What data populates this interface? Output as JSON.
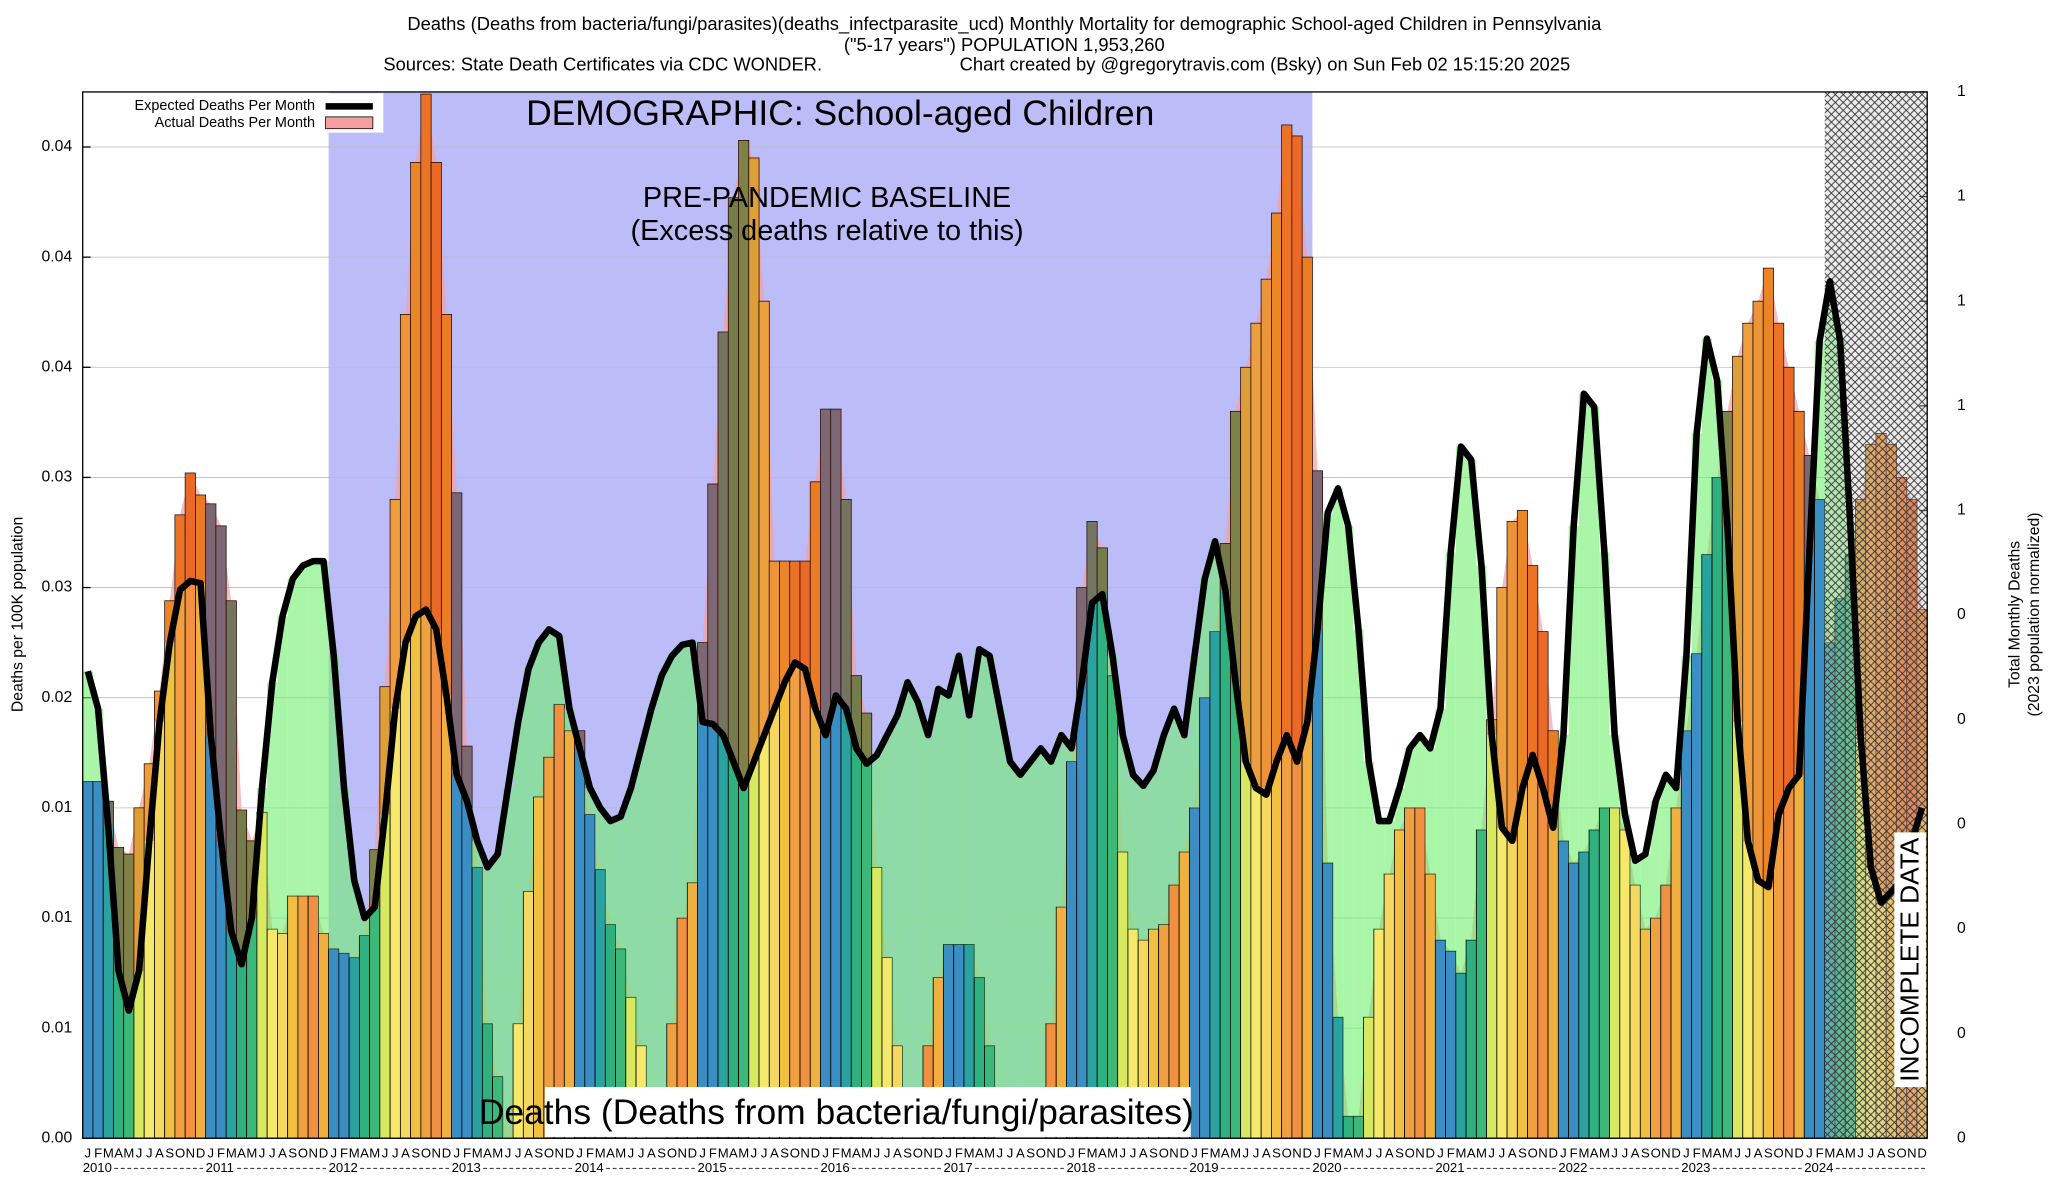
{
  "chart_data": {
    "type": "bar",
    "title": "Deaths (Deaths from bacteria/fungi/parasites)(deaths_infectparasite_ucd) Monthly Mortality for demographic School-aged Children in Pennsylvania",
    "subtitle": "(\"5-17 years\") POPULATION 1,953,260",
    "source": "Sources: State Death Certificates via CDC WONDER.",
    "credit": "Chart created by @gregorytravis.com (Bsky) on Sun Feb 02 15:15:20 2025",
    "ylabel": "Deaths per 100K population",
    "y2label": [
      "Total Monthly Deaths",
      "(2023 population normalized)"
    ],
    "annotations": [
      "DEMOGRAPHIC: School-aged Children",
      "PRE-PANDEMIC BASELINE",
      "(Excess deaths relative to this)",
      "Deaths (Deaths from bacteria/fungi/parasites)",
      "INCOMPLETE DATA"
    ],
    "months": [
      "J",
      "F",
      "M",
      "A",
      "M",
      "J",
      "J",
      "A",
      "S",
      "O",
      "N",
      "D"
    ],
    "years": [
      2010,
      2011,
      2012,
      2013,
      2014,
      2015,
      2016,
      2017,
      2018,
      2019,
      2020,
      2021,
      2022,
      2023,
      2024
    ],
    "baseline_years": [
      2012,
      2019
    ],
    "month_colors": [
      "#3a8ec4",
      "#3a8ec4",
      "#2aa3a0",
      "#2eb07f",
      "#3cb878",
      "#d8e860",
      "#f5e86a",
      "#f5d860",
      "#f2c040",
      "#f0a040",
      "#f09040",
      "#f0b040"
    ],
    "legend": "upper left",
    "grid": true,
    "series": [
      {
        "name": "Expected Deaths Per Month",
        "color": "#000000",
        "values": [
          0.0212,
          0.0195,
          0.0141,
          0.0076,
          0.0058,
          0.0076,
          0.0135,
          0.0189,
          0.0225,
          0.0249,
          0.0253,
          0.0252,
          0.0183,
          0.0135,
          0.0094,
          0.0079,
          0.01,
          0.0159,
          0.0207,
          0.0237,
          0.0254,
          0.026,
          0.0262,
          0.0262,
          0.0219,
          0.0159,
          0.0117,
          0.01,
          0.0105,
          0.0147,
          0.0195,
          0.0225,
          0.0237,
          0.024,
          0.0231,
          0.0201,
          0.0165,
          0.0153,
          0.0135,
          0.0123,
          0.0129,
          0.0159,
          0.0189,
          0.0213,
          0.0225,
          0.0231,
          0.0228,
          0.0195,
          0.0177,
          0.0159,
          0.015,
          0.0144,
          0.0146,
          0.0159,
          0.0177,
          0.0195,
          0.021,
          0.0219,
          0.0224,
          0.0225,
          0.0189,
          0.0188,
          0.0183,
          0.0171,
          0.0159,
          0.0171,
          0.0183,
          0.0195,
          0.0207,
          0.0216,
          0.0213,
          0.0195,
          0.0183,
          0.0201,
          0.0195,
          0.0177,
          0.017,
          0.0174,
          0.0183,
          0.0192,
          0.0207,
          0.0198,
          0.0183,
          0.0204,
          0.0201,
          0.0219,
          0.0192,
          0.0222,
          0.0219,
          0.0195,
          0.0171,
          0.0165,
          0.0171,
          0.0177,
          0.0171,
          0.0183,
          0.0177,
          0.0207,
          0.0243,
          0.0247,
          0.0219,
          0.0183,
          0.0165,
          0.016,
          0.0167,
          0.0183,
          0.0195,
          0.0183,
          0.0219,
          0.0254,
          0.0271,
          0.0249,
          0.0207,
          0.0171,
          0.0159,
          0.0156,
          0.0171,
          0.0183,
          0.0171,
          0.0189,
          0.0231,
          0.0284,
          0.0295,
          0.0278,
          0.0231,
          0.0171,
          0.0144,
          0.0144,
          0.0159,
          0.0177,
          0.0183,
          0.0177,
          0.0195,
          0.0266,
          0.0314,
          0.0308,
          0.026,
          0.0183,
          0.0141,
          0.0135,
          0.0159,
          0.0174,
          0.0159,
          0.0141,
          0.0183,
          0.0278,
          0.0338,
          0.0332,
          0.0266,
          0.0183,
          0.0147,
          0.0126,
          0.0129,
          0.0153,
          0.0165,
          0.0159,
          0.0219,
          0.032,
          0.0363,
          0.0344,
          0.0278,
          0.0189,
          0.0135,
          0.0117,
          0.0114,
          0.0147,
          0.0159,
          0.0165,
          0.0266,
          0.0362,
          0.0389,
          0.0362,
          0.0278,
          0.0183,
          0.0123,
          0.0107,
          0.0112,
          0.0117,
          0.0135,
          0.015
        ]
      },
      {
        "name": "Actual Deaths Per Month",
        "color": "#f4a0a0",
        "values": [
          0.0162,
          0.0162,
          0.0153,
          0.0132,
          0.0129,
          0.015,
          0.017,
          0.0203,
          0.0244,
          0.0283,
          0.0302,
          0.0292,
          0.0288,
          0.0278,
          0.0244,
          0.0149,
          0.0135,
          0.0148,
          0.0095,
          0.0093,
          0.011,
          0.011,
          0.011,
          0.0093,
          0.0086,
          0.0084,
          0.0082,
          0.0092,
          0.0131,
          0.0205,
          0.029,
          0.0374,
          0.0443,
          0.0474,
          0.0443,
          0.0374,
          0.0293,
          0.0178,
          0.0123,
          0.0052,
          0.0028,
          0,
          0.0052,
          0.0112,
          0.0155,
          0.0173,
          0.0197,
          0.0185,
          0.0185,
          0.0147,
          0.0122,
          0.0097,
          0.0086,
          0.0064,
          0.0042,
          0,
          0,
          0.0052,
          0.01,
          0.0116,
          0.0225,
          0.0297,
          0.0366,
          0.0427,
          0.0453,
          0.0445,
          0.038,
          0.0262,
          0.0262,
          0.0262,
          0.0262,
          0.0298,
          0.0331,
          0.0331,
          0.029,
          0.021,
          0.0193,
          0.0123,
          0.0082,
          0.0042,
          0,
          0,
          0.0042,
          0.0073,
          0.0088,
          0.0088,
          0.0088,
          0.0073,
          0.0042,
          0,
          0,
          0,
          0,
          0,
          0.0052,
          0.0105,
          0.0171,
          0.025,
          0.028,
          0.0268,
          0.021,
          0.013,
          0.0095,
          0.009,
          0.0095,
          0.0097,
          0.0115,
          0.013,
          0.015,
          0.02,
          0.023,
          0.027,
          0.033,
          0.035,
          0.037,
          0.039,
          0.042,
          0.046,
          0.0455,
          0.04,
          0.0303,
          0.0125,
          0.0055,
          0.001,
          0.001,
          0.0055,
          0.0095,
          0.012,
          0.014,
          0.015,
          0.015,
          0.012,
          0.009,
          0.0085,
          0.0075,
          0.009,
          0.014,
          0.019,
          0.025,
          0.028,
          0.0285,
          0.026,
          0.023,
          0.0185,
          0.0135,
          0.0125,
          0.013,
          0.014,
          0.015,
          0.015,
          0.014,
          0.0115,
          0.0095,
          0.01,
          0.0115,
          0.015,
          0.0185,
          0.022,
          0.0265,
          0.03,
          0.033,
          0.0355,
          0.037,
          0.038,
          0.0395,
          0.037,
          0.035,
          0.033,
          0.031,
          0.029,
          0.0225,
          0.0245,
          0.0265,
          0.029,
          0.0315,
          0.032,
          0.0315,
          0.03,
          0.029,
          0.024
        ]
      }
    ],
    "ylim": [
      0,
      0.0475
    ],
    "yticks": [
      {
        "value": 0,
        "label": "0.00"
      },
      {
        "value": 0.005,
        "label": "0.01"
      },
      {
        "value": 0.01,
        "label": "0.01"
      },
      {
        "value": 0.015,
        "label": "0.01"
      },
      {
        "value": 0.02,
        "label": "0.02"
      },
      {
        "value": 0.025,
        "label": "0.03"
      },
      {
        "value": 0.03,
        "label": "0.03"
      },
      {
        "value": 0.035,
        "label": "0.04"
      },
      {
        "value": 0.04,
        "label": "0.04"
      },
      {
        "value": 0.045,
        "label": "0.04"
      }
    ],
    "y2lim": [
      0,
      1
    ],
    "y2ticks": [
      {
        "value": 0,
        "label": "0"
      },
      {
        "value": 0.1,
        "label": "0"
      },
      {
        "value": 0.2,
        "label": "0"
      },
      {
        "value": 0.3,
        "label": "0"
      },
      {
        "value": 0.4,
        "label": "0"
      },
      {
        "value": 0.5,
        "label": "0"
      },
      {
        "value": 0.6,
        "label": "1"
      },
      {
        "value": 0.7,
        "label": "1"
      },
      {
        "value": 0.8,
        "label": "1"
      },
      {
        "value": 0.9,
        "label": "1"
      },
      {
        "value": 1,
        "label": "1"
      }
    ]
  }
}
